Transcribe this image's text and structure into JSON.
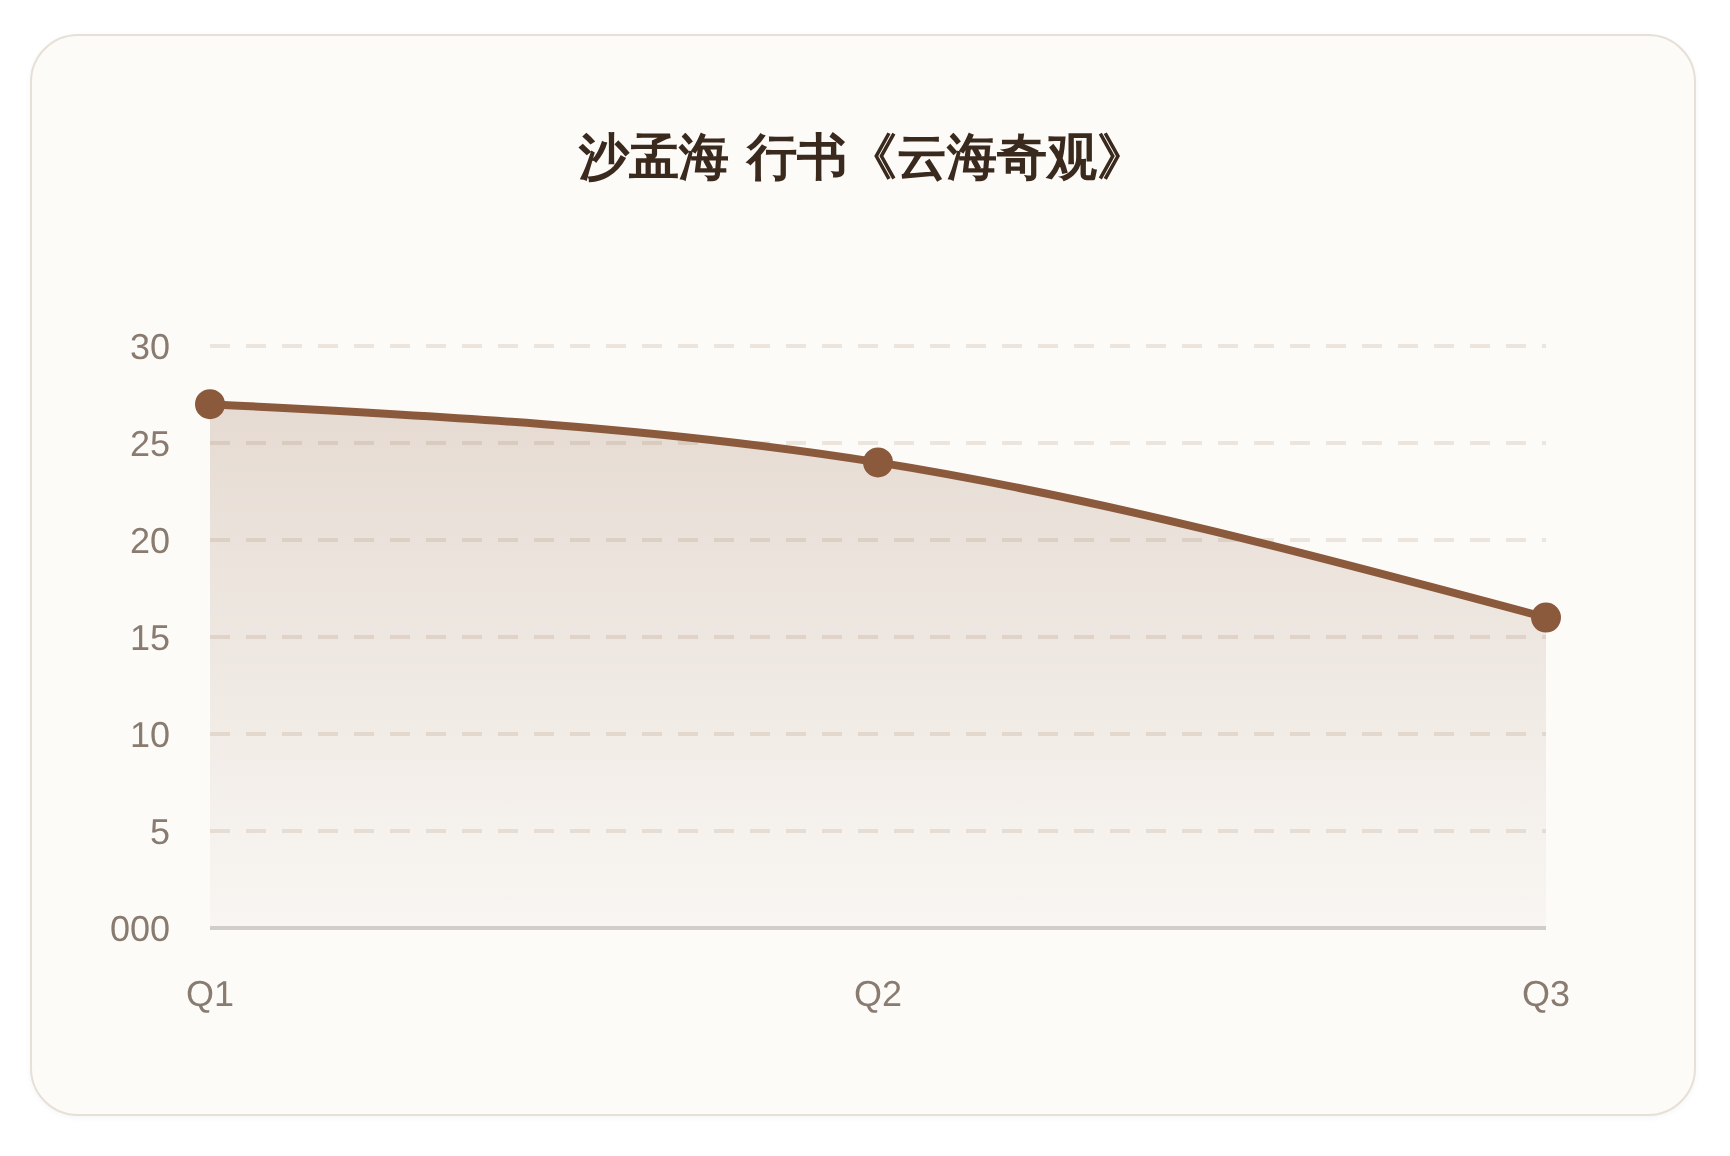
{
  "chart_data": {
    "type": "area",
    "title": "沙孟海 行书《云海奇观》",
    "categories": [
      "Q1",
      "Q2",
      "Q3"
    ],
    "series": [
      {
        "color": "#8b5a3c",
        "values": [
          27,
          24,
          16
        ]
      }
    ],
    "ylim": [
      0,
      30
    ],
    "yticks": [
      {
        "value": 0,
        "label": "000"
      },
      5,
      10,
      15,
      20,
      25,
      30
    ],
    "grid": "y",
    "marker": "circle",
    "line_style": "solid"
  }
}
